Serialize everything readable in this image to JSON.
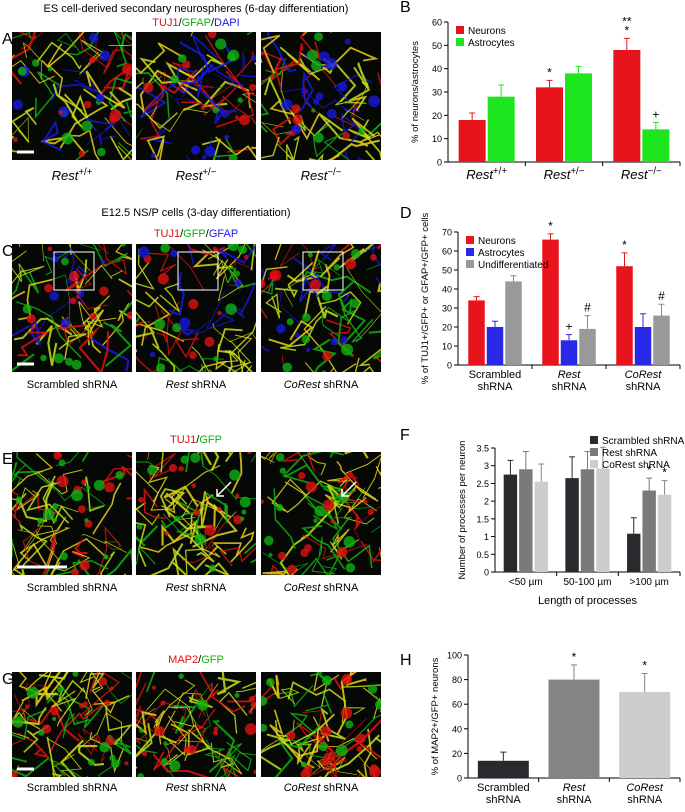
{
  "figure": {
    "rows": [
      {
        "letter": "A",
        "title": "ES cell-derived secondary neurospheres (6-day differentiation)",
        "stain": [
          {
            "text": "TUJ1",
            "color": "#e01010"
          },
          {
            "text": "/",
            "color": "#000000"
          },
          {
            "text": "GFAP",
            "color": "#10b010"
          },
          {
            "text": "/",
            "color": "#000000"
          },
          {
            "text": "DAPI",
            "color": "#1818e0"
          }
        ],
        "captions": [
          [
            {
              "text": "Rest",
              "italic": true
            },
            {
              "text": "+/+",
              "sup": true
            }
          ],
          [
            {
              "text": "Rest",
              "italic": true
            },
            {
              "text": "+/−",
              "sup": true
            }
          ],
          [
            {
              "text": "Rest",
              "italic": true
            },
            {
              "text": "−/−",
              "sup": true
            }
          ]
        ]
      },
      {
        "letter": "C",
        "title": "E12.5 NS/P cells (3-day differentiation)",
        "stain": [
          {
            "text": "TUJ1",
            "color": "#e01010"
          },
          {
            "text": "/",
            "color": "#000000"
          },
          {
            "text": "GFP",
            "color": "#10b010"
          },
          {
            "text": "/",
            "color": "#000000"
          },
          {
            "text": "GFAP",
            "color": "#1818e0"
          }
        ],
        "captions": [
          [
            {
              "text": "Scrambled shRNA"
            }
          ],
          [
            {
              "text": "Rest",
              "italic": true
            },
            {
              "text": " shRNA"
            }
          ],
          [
            {
              "text": "CoRest",
              "italic": true
            },
            {
              "text": " shRNA"
            }
          ]
        ]
      },
      {
        "letter": "E",
        "stain": [
          {
            "text": "TUJ1",
            "color": "#e01010"
          },
          {
            "text": "/",
            "color": "#000000"
          },
          {
            "text": "GFP",
            "color": "#10b010"
          }
        ],
        "captions": [
          [
            {
              "text": "Scrambled shRNA"
            }
          ],
          [
            {
              "text": "Rest",
              "italic": true
            },
            {
              "text": " shRNA"
            }
          ],
          [
            {
              "text": "CoRest",
              "italic": true
            },
            {
              "text": " shRNA"
            }
          ]
        ]
      },
      {
        "letter": "G",
        "stain": [
          {
            "text": "MAP2",
            "color": "#e01010"
          },
          {
            "text": "/",
            "color": "#000000"
          },
          {
            "text": "GFP",
            "color": "#10b010"
          }
        ],
        "captions": [
          [
            {
              "text": "Scrambled shRNA"
            }
          ],
          [
            {
              "text": "Rest",
              "italic": true
            },
            {
              "text": " shRNA"
            }
          ],
          [
            {
              "text": "CoRest",
              "italic": true
            },
            {
              "text": " shRNA"
            }
          ]
        ]
      }
    ]
  },
  "chart_data": [
    {
      "type": "bar",
      "panel": "B",
      "ylabel": "% of neurons/astrocytes",
      "ylim": [
        0,
        60
      ],
      "yticks": [
        0,
        10,
        20,
        30,
        40,
        50,
        60
      ],
      "legend": "upper left",
      "categories": [
        [
          {
            "text": "Rest",
            "italic": true
          },
          {
            "text": "+/+",
            "sup": true
          }
        ],
        [
          {
            "text": "Rest",
            "italic": true
          },
          {
            "text": "+/−",
            "sup": true
          }
        ],
        [
          {
            "text": "Rest",
            "italic": true
          },
          {
            "text": "−/−",
            "sup": true
          }
        ]
      ],
      "series": [
        {
          "name": "Neurons",
          "color": "#e8141c",
          "values": [
            18,
            32,
            48
          ],
          "errors": [
            3,
            3,
            5
          ],
          "marks": [
            null,
            [
              "*"
            ],
            [
              "**",
              "*"
            ]
          ]
        },
        {
          "name": "Astrocytes",
          "color": "#1ee61e",
          "values": [
            28,
            38,
            14
          ],
          "errors": [
            5,
            3,
            3
          ],
          "marks": [
            null,
            null,
            [
              "+"
            ]
          ]
        }
      ]
    },
    {
      "type": "bar",
      "panel": "D",
      "ylabel": "% of TUJ1+/GFP+ or GFAP+/GFP+ cells",
      "ylim": [
        0,
        70
      ],
      "yticks": [
        0,
        10,
        20,
        30,
        40,
        50,
        60,
        70
      ],
      "legend": "upper left",
      "categories": [
        [
          "Scrambled",
          "shRNA"
        ],
        [
          "Rest",
          "shRNA"
        ],
        [
          "CoRest",
          "shRNA"
        ]
      ],
      "category_italic": [
        false,
        true,
        true
      ],
      "series": [
        {
          "name": "Neurons",
          "color": "#e8141c",
          "values": [
            34,
            66,
            52
          ],
          "errors": [
            2,
            3,
            7
          ],
          "marks": [
            null,
            [
              "*"
            ],
            [
              "*"
            ]
          ]
        },
        {
          "name": "Astrocytes",
          "color": "#2828e6",
          "values": [
            20,
            13,
            20
          ],
          "errors": [
            3,
            3,
            7
          ],
          "marks": [
            null,
            [
              "+"
            ],
            null
          ]
        },
        {
          "name": "Undifferentiated",
          "color": "#999999",
          "values": [
            44,
            19,
            26
          ],
          "errors": [
            3,
            7,
            6
          ],
          "marks": [
            null,
            [
              "#"
            ],
            [
              "#"
            ]
          ]
        }
      ]
    },
    {
      "type": "bar",
      "panel": "F",
      "ylabel": "Number of processes per neuron",
      "xlabel": "Length of processes",
      "ylim": [
        0,
        3.5
      ],
      "yticks": [
        0,
        0.5,
        1,
        1.5,
        2,
        2.5,
        3,
        3.5
      ],
      "legend": "upper right",
      "categories": [
        [
          "<50 µm"
        ],
        [
          "50-100 µm"
        ],
        [
          ">100 µm"
        ]
      ],
      "series": [
        {
          "name": "Scrambled shRNA",
          "color": "#2a2a2e",
          "values": [
            2.75,
            2.65,
            1.08
          ],
          "errors": [
            0.4,
            0.6,
            0.45
          ],
          "marks": [
            null,
            null,
            null
          ]
        },
        {
          "name": "Rest shRNA",
          "color": "#7a7a7a",
          "values": [
            2.9,
            2.9,
            2.3
          ],
          "errors": [
            0.5,
            0.5,
            0.35
          ],
          "marks": [
            null,
            null,
            [
              "*"
            ]
          ]
        },
        {
          "name": "CoRest shRNA",
          "color": "#cfcccc",
          "values": [
            2.55,
            2.92,
            2.18
          ],
          "errors": [
            0.5,
            0.6,
            0.4
          ],
          "marks": [
            null,
            null,
            [
              "*"
            ]
          ]
        }
      ]
    },
    {
      "type": "bar",
      "panel": "H",
      "ylabel": "% of MAP2+/GFP+ neurons",
      "ylim": [
        0,
        100
      ],
      "yticks": [
        0,
        20,
        40,
        60,
        80,
        100
      ],
      "categories": [
        [
          "Scrambled",
          "shRNA"
        ],
        [
          "Rest",
          "shRNA"
        ],
        [
          "CoRest",
          "shRNA"
        ]
      ],
      "category_italic": [
        false,
        true,
        true
      ],
      "values": [
        14,
        80,
        70
      ],
      "errors": [
        7,
        12,
        15
      ],
      "colors": [
        "#2a2a2e",
        "#858585",
        "#cfcccc"
      ],
      "marks": [
        null,
        [
          "*"
        ],
        [
          "*"
        ]
      ]
    }
  ]
}
